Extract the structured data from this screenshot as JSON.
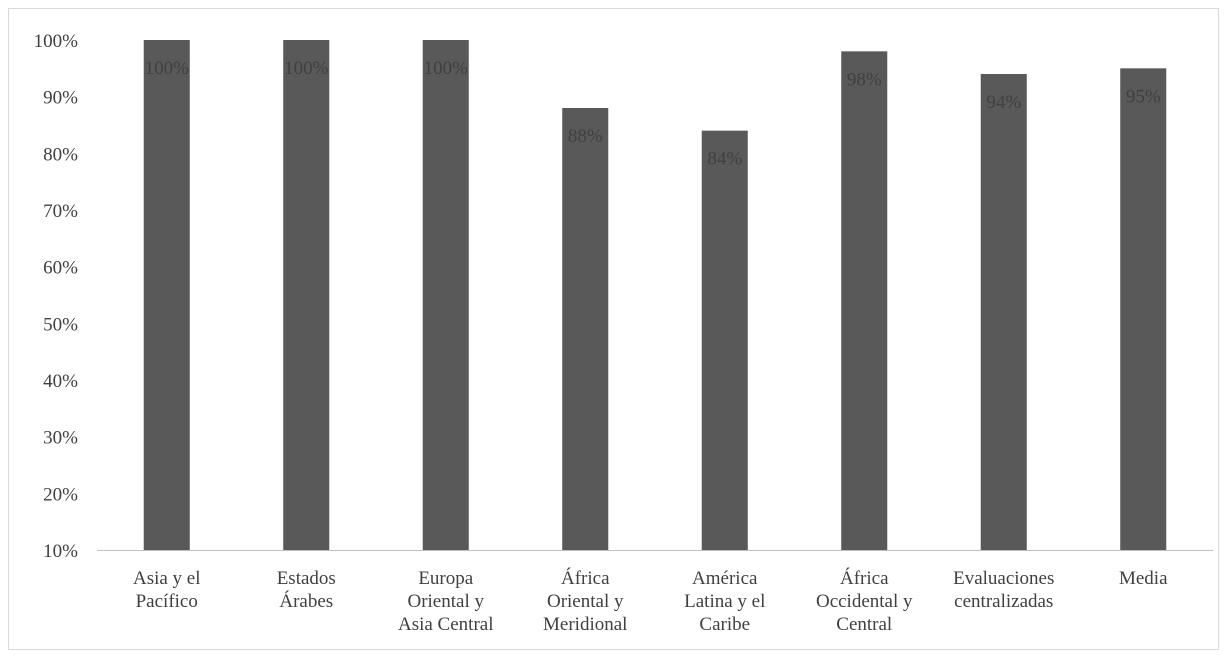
{
  "chart_data": {
    "type": "bar",
    "title": "",
    "xlabel": "",
    "ylabel": "",
    "ylim": [
      10,
      100
    ],
    "yticks": [
      "10%",
      "20%",
      "30%",
      "40%",
      "50%",
      "60%",
      "70%",
      "80%",
      "90%",
      "100%"
    ],
    "categories": [
      [
        "Asia y el",
        "Pacífico"
      ],
      [
        "Estados",
        "Árabes"
      ],
      [
        "Europa",
        "Oriental y",
        "Asia Central"
      ],
      [
        "África",
        "Oriental y",
        "Meridional"
      ],
      [
        "América",
        "Latina y el",
        "Caribe"
      ],
      [
        "África",
        "Occidental y",
        "Central"
      ],
      [
        "Evaluaciones",
        "centralizadas"
      ],
      [
        "Media"
      ]
    ],
    "values": [
      100,
      100,
      100,
      88,
      84,
      98,
      94,
      95
    ],
    "data_labels": [
      "100%",
      "100%",
      "100%",
      "88%",
      "84%",
      "98%",
      "94%",
      "95%"
    ],
    "bar_color": "#595959",
    "grid": false,
    "legend": "none"
  }
}
